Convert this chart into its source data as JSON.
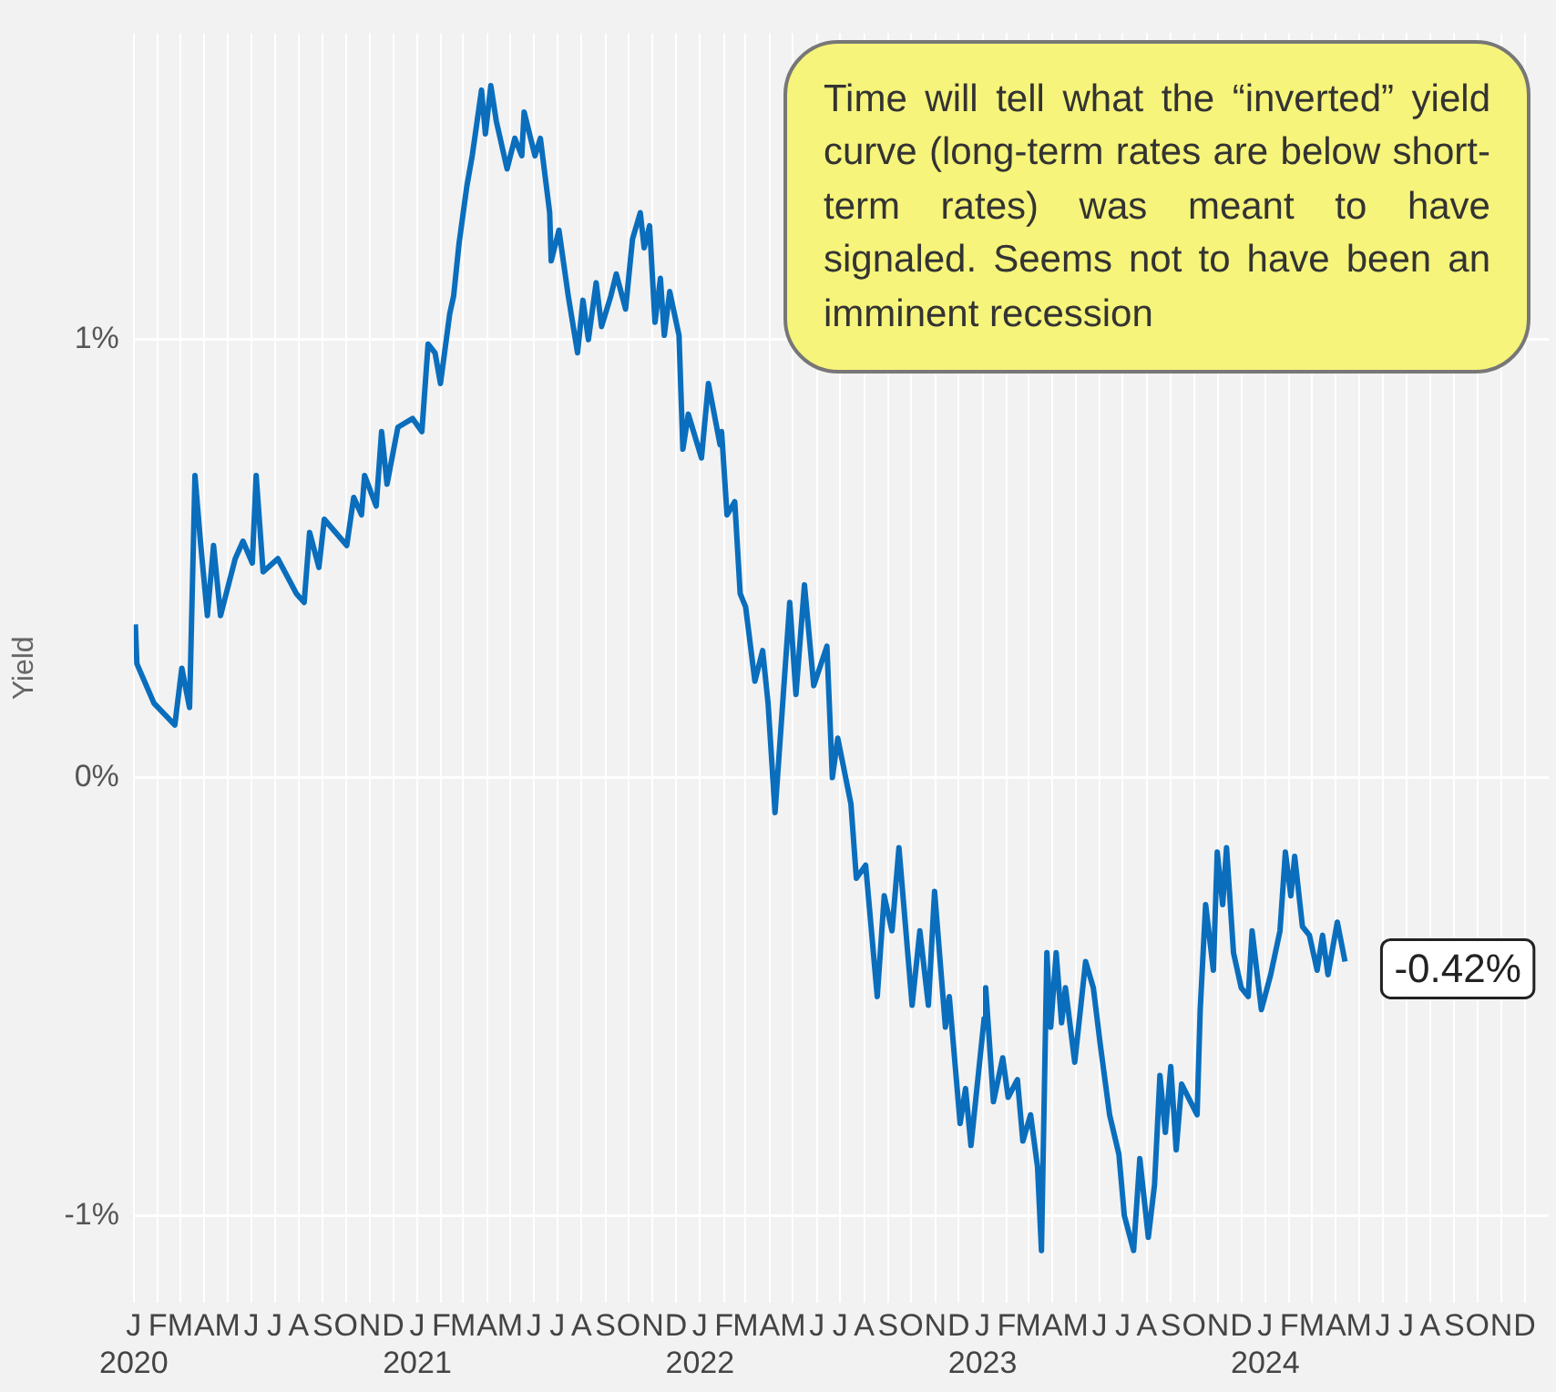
{
  "chart_data": {
    "type": "line",
    "ylabel": "Yield",
    "annotations": [
      "Time will tell what the “inverted” yield curve (long-term rates are below short-term rates) was meant to have signaled. Seems not to have been an imminent recession",
      {
        "text": "-0.42%",
        "x": "2024-04-13",
        "y": -0.42
      }
    ],
    "x": [
      "2020-01-03",
      "2020-01-05",
      "2020-01-27",
      "2020-02-23",
      "2020-03-03",
      "2020-03-13",
      "2020-03-20",
      "2020-03-27",
      "2020-04-05",
      "2020-04-13",
      "2020-04-22",
      "2020-05-11",
      "2020-05-21",
      "2020-06-02",
      "2020-06-07",
      "2020-06-16",
      "2020-07-05",
      "2020-07-29",
      "2020-08-08",
      "2020-08-15",
      "2020-08-27",
      "2020-09-03",
      "2020-10-02",
      "2020-10-11",
      "2020-10-21",
      "2020-10-25",
      "2020-11-09",
      "2020-11-16",
      "2020-11-23",
      "2020-12-07",
      "2020-12-26",
      "2021-01-07",
      "2021-01-15",
      "2021-01-24",
      "2021-01-31",
      "2021-02-12",
      "2021-02-17",
      "2021-02-24",
      "2021-03-06",
      "2021-03-13",
      "2021-03-25",
      "2021-03-30",
      "2021-04-06",
      "2021-04-13",
      "2021-04-27",
      "2021-05-07",
      "2021-05-16",
      "2021-05-19",
      "2021-06-02",
      "2021-06-09",
      "2021-06-21",
      "2021-06-23",
      "2021-07-03",
      "2021-07-15",
      "2021-07-27",
      "2021-08-03",
      "2021-08-10",
      "2021-08-20",
      "2021-08-27",
      "2021-09-08",
      "2021-09-15",
      "2021-09-27",
      "2021-10-06",
      "2021-10-16",
      "2021-10-21",
      "2021-10-28",
      "2021-11-04",
      "2021-11-11",
      "2021-11-16",
      "2021-11-23",
      "2021-12-05",
      "2021-12-10",
      "2021-12-17",
      "2022-01-03",
      "2022-01-12",
      "2022-01-27",
      "2022-01-29",
      "2022-02-05",
      "2022-02-15",
      "2022-02-22",
      "2022-03-01",
      "2022-03-13",
      "2022-03-23",
      "2022-03-30",
      "2022-04-08",
      "2022-04-27",
      "2022-05-05",
      "2022-05-16",
      "2022-05-28",
      "2022-06-14",
      "2022-06-21",
      "2022-06-28",
      "2022-07-15",
      "2022-07-22",
      "2022-08-03",
      "2022-08-18",
      "2022-08-27",
      "2022-09-06",
      "2022-09-15",
      "2022-10-02",
      "2022-10-12",
      "2022-10-23",
      "2022-10-31",
      "2022-11-14",
      "2022-11-19",
      "2022-12-03",
      "2022-12-10",
      "2022-12-17",
      "2023-01-03",
      "2023-01-05",
      "2023-01-15",
      "2023-01-27",
      "2023-02-03",
      "2023-02-15",
      "2023-02-22",
      "2023-03-04",
      "2023-03-13",
      "2023-03-18",
      "2023-03-25",
      "2023-03-30",
      "2023-04-06",
      "2023-04-13",
      "2023-04-18",
      "2023-04-30",
      "2023-05-14",
      "2023-05-24",
      "2023-06-02",
      "2023-06-14",
      "2023-06-26",
      "2023-07-03",
      "2023-07-15",
      "2023-07-23",
      "2023-08-03",
      "2023-08-11",
      "2023-08-18",
      "2023-08-25",
      "2023-09-01",
      "2023-09-08",
      "2023-09-15",
      "2023-10-05",
      "2023-10-09",
      "2023-10-16",
      "2023-10-26",
      "2023-10-31",
      "2023-11-07",
      "2023-11-12",
      "2023-11-21",
      "2023-12-01",
      "2023-12-10",
      "2023-12-15",
      "2023-12-27",
      "2024-01-08",
      "2024-01-20",
      "2024-01-27",
      "2024-02-03",
      "2024-02-08",
      "2024-02-18",
      "2024-02-27",
      "2024-03-08",
      "2024-03-15",
      "2024-03-22",
      "2024-04-03",
      "2024-04-13"
    ],
    "series": [
      {
        "color": "#0a6ebd",
        "values": [
          0.35,
          0.26,
          0.17,
          0.12,
          0.25,
          0.16,
          0.69,
          0.54,
          0.37,
          0.53,
          0.37,
          0.5,
          0.54,
          0.49,
          0.69,
          0.47,
          0.5,
          0.42,
          0.4,
          0.56,
          0.48,
          0.59,
          0.53,
          0.64,
          0.6,
          0.69,
          0.62,
          0.79,
          0.67,
          0.8,
          0.82,
          0.79,
          0.99,
          0.97,
          0.9,
          1.06,
          1.1,
          1.22,
          1.35,
          1.42,
          1.57,
          1.47,
          1.58,
          1.5,
          1.39,
          1.46,
          1.42,
          1.52,
          1.42,
          1.46,
          1.29,
          1.18,
          1.25,
          1.1,
          0.97,
          1.09,
          1.0,
          1.13,
          1.03,
          1.1,
          1.15,
          1.07,
          1.23,
          1.29,
          1.21,
          1.26,
          1.04,
          1.14,
          1.01,
          1.11,
          1.01,
          0.75,
          0.83,
          0.73,
          0.9,
          0.76,
          0.79,
          0.6,
          0.63,
          0.42,
          0.39,
          0.22,
          0.29,
          0.17,
          -0.08,
          0.4,
          0.19,
          0.44,
          0.21,
          0.3,
          0.0,
          0.09,
          -0.06,
          -0.23,
          -0.2,
          -0.5,
          -0.27,
          -0.35,
          -0.16,
          -0.52,
          -0.35,
          -0.52,
          -0.26,
          -0.57,
          -0.5,
          -0.79,
          -0.71,
          -0.84,
          -0.55,
          -0.48,
          -0.74,
          -0.64,
          -0.73,
          -0.69,
          -0.83,
          -0.77,
          -0.89,
          -1.08,
          -0.4,
          -0.57,
          -0.4,
          -0.56,
          -0.48,
          -0.65,
          -0.42,
          -0.48,
          -0.61,
          -0.77,
          -0.86,
          -1.0,
          -1.08,
          -0.87,
          -1.05,
          -0.93,
          -0.68,
          -0.81,
          -0.66,
          -0.85,
          -0.7,
          -0.77,
          -0.53,
          -0.29,
          -0.44,
          -0.17,
          -0.29,
          -0.16,
          -0.4,
          -0.48,
          -0.5,
          -0.35,
          -0.53,
          -0.45,
          -0.35,
          -0.17,
          -0.27,
          -0.18,
          -0.34,
          -0.36,
          -0.44,
          -0.36,
          -0.45,
          -0.33,
          -0.42
        ]
      }
    ],
    "xlim": [
      "2020-01-01",
      "2025-01-01"
    ],
    "xticks": [
      {
        "value": "2020-01",
        "label": "J\n2020"
      },
      {
        "value": "2020-02",
        "label": "F"
      },
      {
        "value": "2020-03",
        "label": "M"
      },
      {
        "value": "2020-04",
        "label": "A"
      },
      {
        "value": "2020-05",
        "label": "M"
      },
      {
        "value": "2020-06",
        "label": "J"
      },
      {
        "value": "2020-07",
        "label": "J"
      },
      {
        "value": "2020-08",
        "label": "A"
      },
      {
        "value": "2020-09",
        "label": "S"
      },
      {
        "value": "2020-10",
        "label": "O"
      },
      {
        "value": "2020-11",
        "label": "N"
      },
      {
        "value": "2020-12",
        "label": "D"
      },
      {
        "value": "2021-01",
        "label": "J\n2021"
      },
      {
        "value": "2021-02",
        "label": "F"
      },
      {
        "value": "2021-03",
        "label": "M"
      },
      {
        "value": "2021-04",
        "label": "A"
      },
      {
        "value": "2021-05",
        "label": "M"
      },
      {
        "value": "2021-06",
        "label": "J"
      },
      {
        "value": "2021-07",
        "label": "J"
      },
      {
        "value": "2021-08",
        "label": "A"
      },
      {
        "value": "2021-09",
        "label": "S"
      },
      {
        "value": "2021-10",
        "label": "O"
      },
      {
        "value": "2021-11",
        "label": "N"
      },
      {
        "value": "2021-12",
        "label": "D"
      },
      {
        "value": "2022-01",
        "label": "J\n2022"
      },
      {
        "value": "2022-02",
        "label": "F"
      },
      {
        "value": "2022-03",
        "label": "M"
      },
      {
        "value": "2022-04",
        "label": "A"
      },
      {
        "value": "2022-05",
        "label": "M"
      },
      {
        "value": "2022-06",
        "label": "J"
      },
      {
        "value": "2022-07",
        "label": "J"
      },
      {
        "value": "2022-08",
        "label": "A"
      },
      {
        "value": "2022-09",
        "label": "S"
      },
      {
        "value": "2022-10",
        "label": "O"
      },
      {
        "value": "2022-11",
        "label": "N"
      },
      {
        "value": "2022-12",
        "label": "D"
      },
      {
        "value": "2023-01",
        "label": "J\n2023"
      },
      {
        "value": "2023-02",
        "label": "F"
      },
      {
        "value": "2023-03",
        "label": "M"
      },
      {
        "value": "2023-04",
        "label": "A"
      },
      {
        "value": "2023-05",
        "label": "M"
      },
      {
        "value": "2023-06",
        "label": "J"
      },
      {
        "value": "2023-07",
        "label": "J"
      },
      {
        "value": "2023-08",
        "label": "A"
      },
      {
        "value": "2023-09",
        "label": "S"
      },
      {
        "value": "2023-10",
        "label": "O"
      },
      {
        "value": "2023-11",
        "label": "N"
      },
      {
        "value": "2023-12",
        "label": "D"
      },
      {
        "value": "2024-01",
        "label": "J\n2024"
      },
      {
        "value": "2024-02",
        "label": "F"
      },
      {
        "value": "2024-03",
        "label": "M"
      },
      {
        "value": "2024-04",
        "label": "A"
      },
      {
        "value": "2024-05",
        "label": "M"
      },
      {
        "value": "2024-06",
        "label": "J"
      },
      {
        "value": "2024-07",
        "label": "J"
      },
      {
        "value": "2024-08",
        "label": "A"
      },
      {
        "value": "2024-09",
        "label": "S"
      },
      {
        "value": "2024-10",
        "label": "O"
      },
      {
        "value": "2024-11",
        "label": "N"
      },
      {
        "value": "2024-12",
        "label": "D"
      }
    ],
    "ylim": [
      -1.2,
      1.7
    ],
    "yticks": [
      {
        "value": -1,
        "label": "-1%"
      },
      {
        "value": 0,
        "label": "0%"
      },
      {
        "value": 1,
        "label": "1%"
      }
    ],
    "grid": true,
    "legend": false,
    "marker": "none",
    "line_style": "solid"
  }
}
